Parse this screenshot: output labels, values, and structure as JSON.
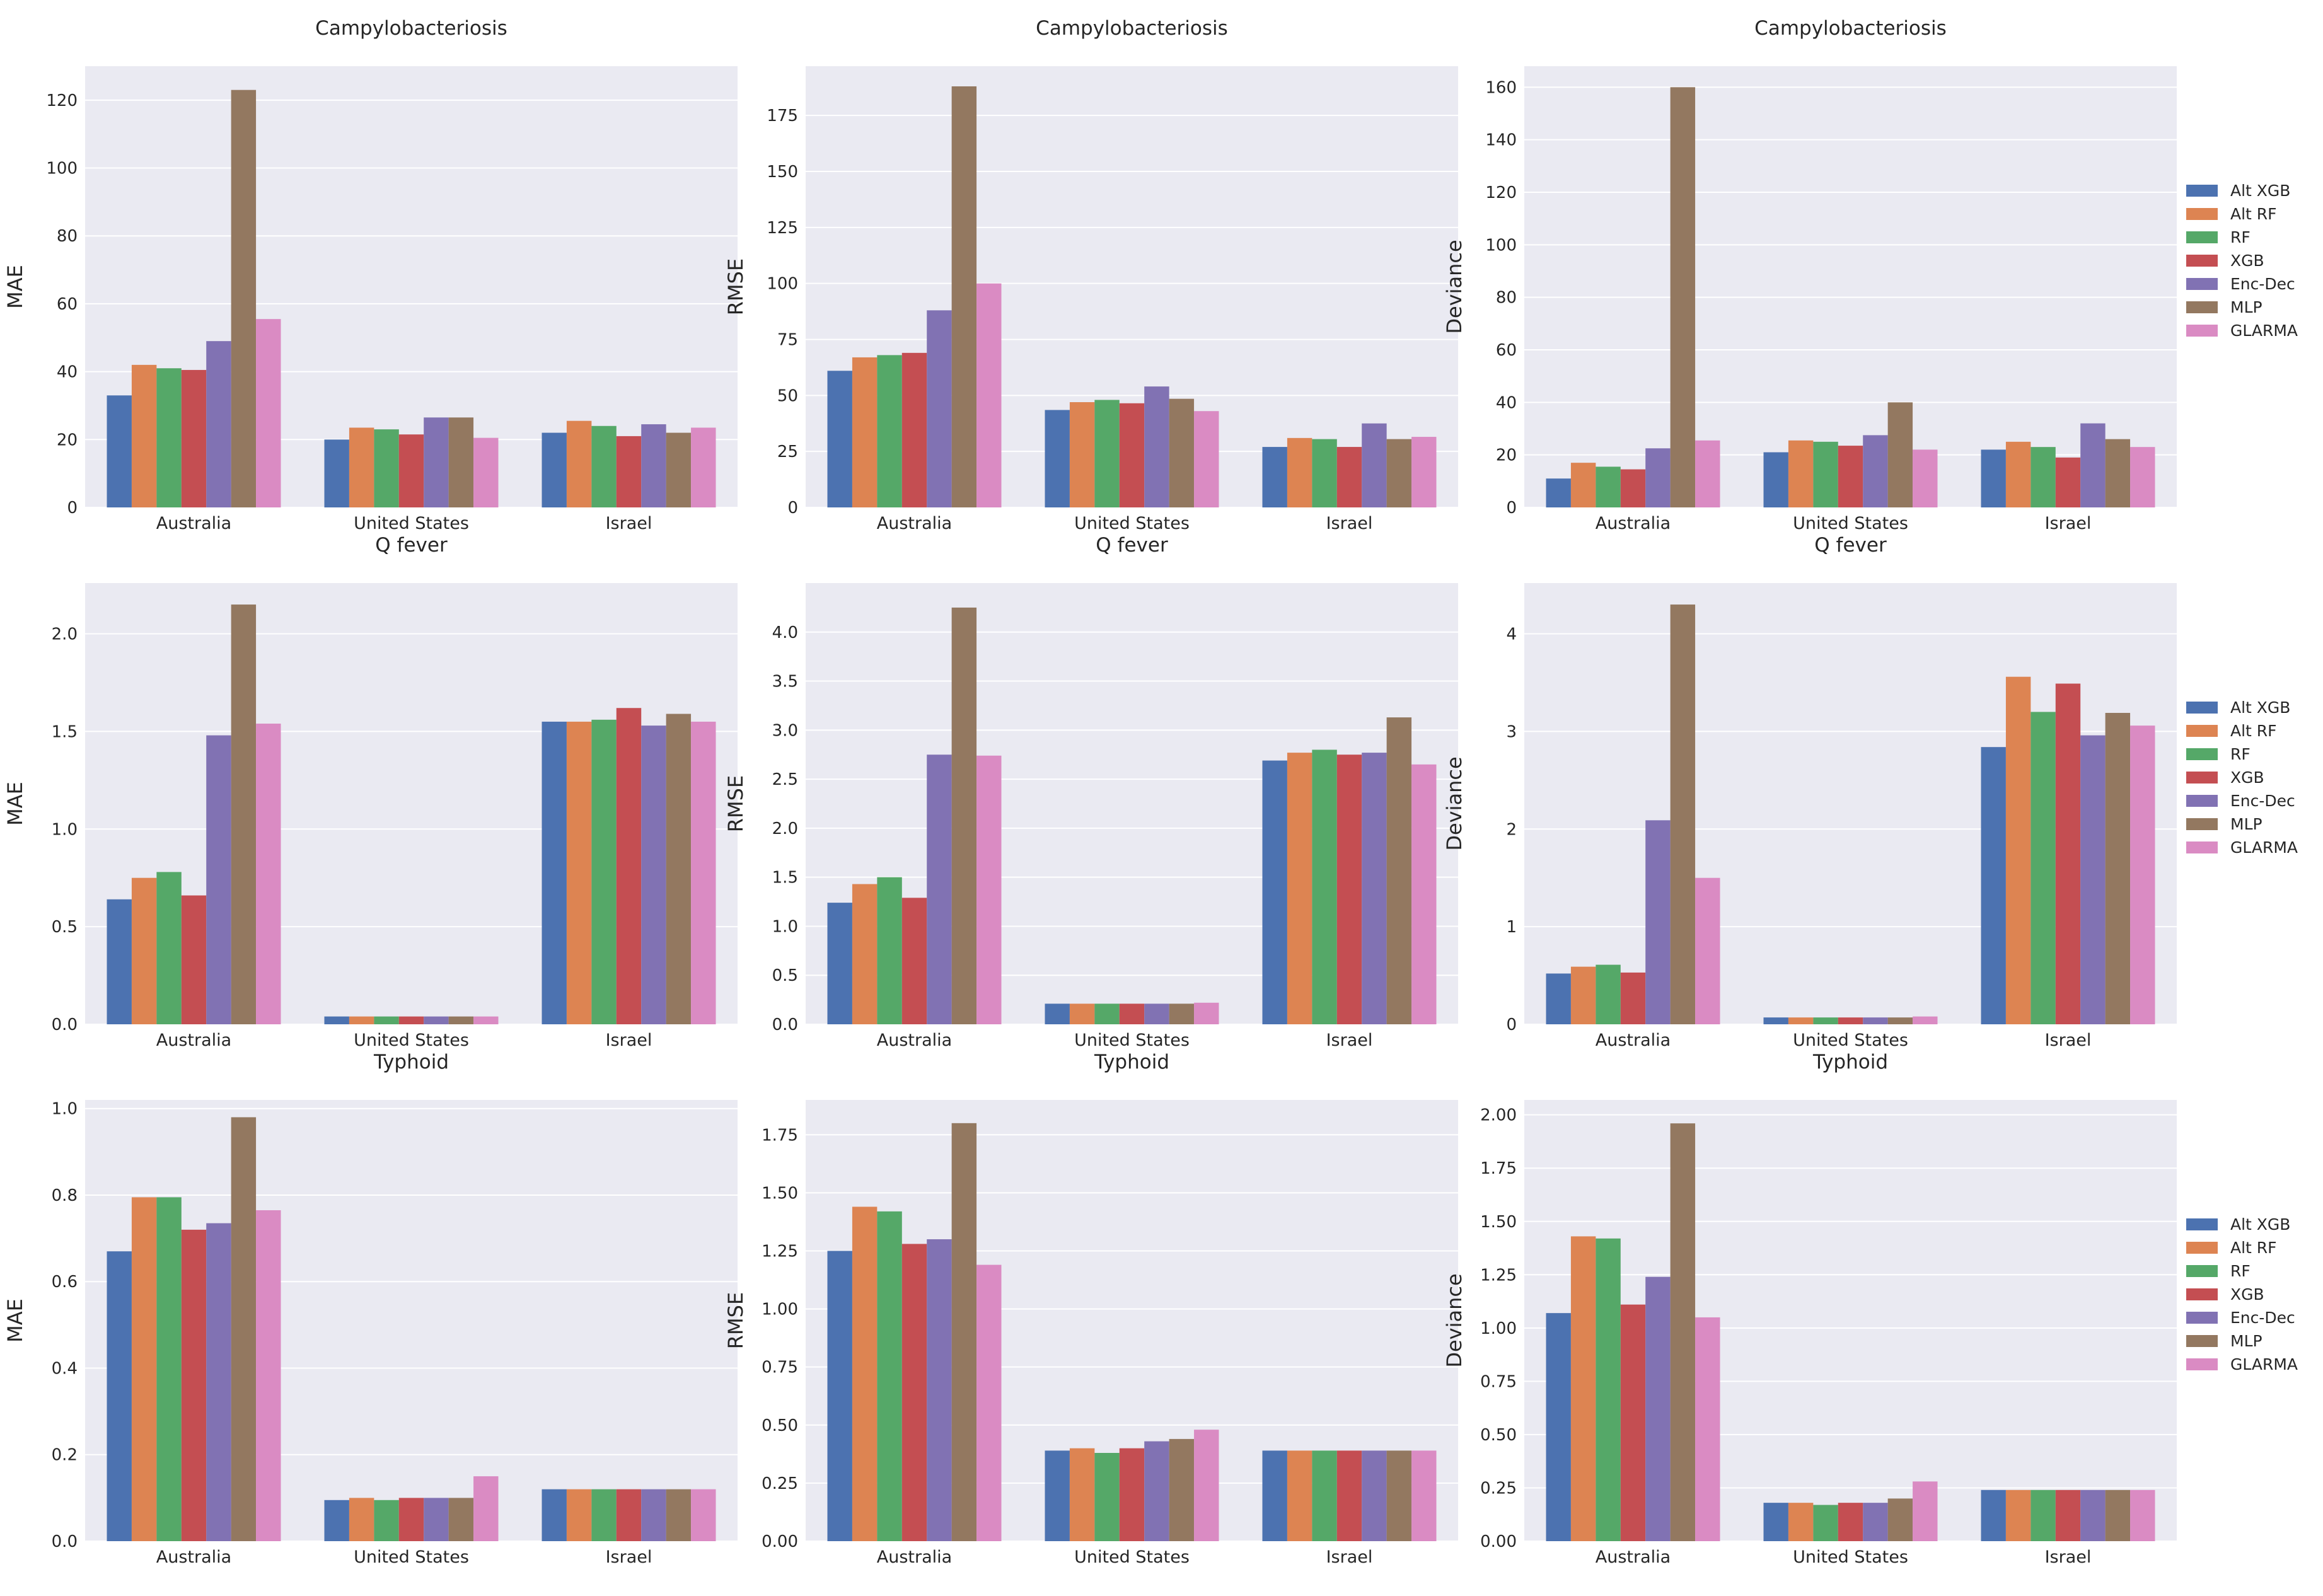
{
  "series_names": [
    "Alt XGB",
    "Alt RF",
    "RF",
    "XGB",
    "Enc-Dec",
    "MLP",
    "GLARMA"
  ],
  "series_colors": [
    "#4c72b0",
    "#dd8452",
    "#55a868",
    "#c44e52",
    "#8172b3",
    "#937860",
    "#da8bc3"
  ],
  "chart_data": [
    {
      "type": "bar",
      "title": "Campylobacteriosis",
      "xlabel": "",
      "ylabel": "MAE",
      "categories": [
        "Australia",
        "United States",
        "Israel"
      ],
      "ylim": [
        0,
        130
      ],
      "yticks": [
        0,
        20,
        40,
        60,
        80,
        100,
        120
      ],
      "yticklabels": [
        "0",
        "20",
        "40",
        "60",
        "80",
        "100",
        "120"
      ],
      "series": [
        {
          "name": "Alt XGB",
          "values": [
            33,
            20,
            22
          ]
        },
        {
          "name": "Alt RF",
          "values": [
            42,
            23.5,
            25.5
          ]
        },
        {
          "name": "RF",
          "values": [
            41,
            23,
            24
          ]
        },
        {
          "name": "XGB",
          "values": [
            40.5,
            21.5,
            21
          ]
        },
        {
          "name": "Enc-Dec",
          "values": [
            49,
            26.5,
            24.5
          ]
        },
        {
          "name": "MLP",
          "values": [
            123,
            26.5,
            22
          ]
        },
        {
          "name": "GLARMA",
          "values": [
            55.5,
            20.5,
            23.5
          ]
        }
      ]
    },
    {
      "type": "bar",
      "title": "Campylobacteriosis",
      "xlabel": "",
      "ylabel": "RMSE",
      "categories": [
        "Australia",
        "United States",
        "Israel"
      ],
      "ylim": [
        0,
        197
      ],
      "yticks": [
        0,
        25,
        50,
        75,
        100,
        125,
        150,
        175
      ],
      "yticklabels": [
        "0",
        "25",
        "50",
        "75",
        "100",
        "125",
        "150",
        "175"
      ],
      "series": [
        {
          "name": "Alt XGB",
          "values": [
            61,
            43.5,
            27
          ]
        },
        {
          "name": "Alt RF",
          "values": [
            67,
            47,
            31
          ]
        },
        {
          "name": "RF",
          "values": [
            68,
            48,
            30.5
          ]
        },
        {
          "name": "XGB",
          "values": [
            69,
            46.5,
            27
          ]
        },
        {
          "name": "Enc-Dec",
          "values": [
            88,
            54,
            37.5
          ]
        },
        {
          "name": "MLP",
          "values": [
            188,
            48.5,
            30.5
          ]
        },
        {
          "name": "GLARMA",
          "values": [
            100,
            43,
            31.5
          ]
        }
      ]
    },
    {
      "type": "bar",
      "title": "Campylobacteriosis",
      "xlabel": "",
      "ylabel": "Deviance",
      "categories": [
        "Australia",
        "United States",
        "Israel"
      ],
      "ylim": [
        0,
        168
      ],
      "yticks": [
        0,
        20,
        40,
        60,
        80,
        100,
        120,
        140,
        160
      ],
      "yticklabels": [
        "0",
        "20",
        "40",
        "60",
        "80",
        "100",
        "120",
        "140",
        "160"
      ],
      "series": [
        {
          "name": "Alt XGB",
          "values": [
            11,
            21,
            22
          ]
        },
        {
          "name": "Alt RF",
          "values": [
            17,
            25.5,
            25
          ]
        },
        {
          "name": "RF",
          "values": [
            15.5,
            25,
            23
          ]
        },
        {
          "name": "XGB",
          "values": [
            14.5,
            23.5,
            19
          ]
        },
        {
          "name": "Enc-Dec",
          "values": [
            22.5,
            27.5,
            32
          ]
        },
        {
          "name": "MLP",
          "values": [
            160,
            40,
            26
          ]
        },
        {
          "name": "GLARMA",
          "values": [
            25.5,
            22,
            23
          ]
        }
      ]
    },
    {
      "type": "bar",
      "title": "Q fever",
      "xlabel": "",
      "ylabel": "MAE",
      "categories": [
        "Australia",
        "United States",
        "Israel"
      ],
      "ylim": [
        0,
        2.26
      ],
      "yticks": [
        0,
        0.5,
        1.0,
        1.5,
        2.0
      ],
      "yticklabels": [
        "0.0",
        "0.5",
        "1.0",
        "1.5",
        "2.0"
      ],
      "series": [
        {
          "name": "Alt XGB",
          "values": [
            0.64,
            0.04,
            1.55
          ]
        },
        {
          "name": "Alt RF",
          "values": [
            0.75,
            0.04,
            1.55
          ]
        },
        {
          "name": "RF",
          "values": [
            0.78,
            0.04,
            1.56
          ]
        },
        {
          "name": "XGB",
          "values": [
            0.66,
            0.04,
            1.62
          ]
        },
        {
          "name": "Enc-Dec",
          "values": [
            1.48,
            0.04,
            1.53
          ]
        },
        {
          "name": "MLP",
          "values": [
            2.15,
            0.04,
            1.59
          ]
        },
        {
          "name": "GLARMA",
          "values": [
            1.54,
            0.04,
            1.55
          ]
        }
      ]
    },
    {
      "type": "bar",
      "title": "Q fever",
      "xlabel": "",
      "ylabel": "RMSE",
      "categories": [
        "Australia",
        "United States",
        "Israel"
      ],
      "ylim": [
        0,
        4.5
      ],
      "yticks": [
        0,
        0.5,
        1.0,
        1.5,
        2.0,
        2.5,
        3.0,
        3.5,
        4.0
      ],
      "yticklabels": [
        "0.0",
        "0.5",
        "1.0",
        "1.5",
        "2.0",
        "2.5",
        "3.0",
        "3.5",
        "4.0"
      ],
      "series": [
        {
          "name": "Alt XGB",
          "values": [
            1.24,
            0.21,
            2.69
          ]
        },
        {
          "name": "Alt RF",
          "values": [
            1.43,
            0.21,
            2.77
          ]
        },
        {
          "name": "RF",
          "values": [
            1.5,
            0.21,
            2.8
          ]
        },
        {
          "name": "XGB",
          "values": [
            1.29,
            0.21,
            2.75
          ]
        },
        {
          "name": "Enc-Dec",
          "values": [
            2.75,
            0.21,
            2.77
          ]
        },
        {
          "name": "MLP",
          "values": [
            4.25,
            0.21,
            3.13
          ]
        },
        {
          "name": "GLARMA",
          "values": [
            2.74,
            0.22,
            2.65
          ]
        }
      ]
    },
    {
      "type": "bar",
      "title": "Q fever",
      "xlabel": "",
      "ylabel": "Deviance",
      "categories": [
        "Australia",
        "United States",
        "Israel"
      ],
      "ylim": [
        0,
        4.52
      ],
      "yticks": [
        0,
        1,
        2,
        3,
        4
      ],
      "yticklabels": [
        "0",
        "1",
        "2",
        "3",
        "4"
      ],
      "series": [
        {
          "name": "Alt XGB",
          "values": [
            0.52,
            0.07,
            2.84
          ]
        },
        {
          "name": "Alt RF",
          "values": [
            0.59,
            0.07,
            3.56
          ]
        },
        {
          "name": "RF",
          "values": [
            0.61,
            0.07,
            3.2
          ]
        },
        {
          "name": "XGB",
          "values": [
            0.53,
            0.07,
            3.49
          ]
        },
        {
          "name": "Enc-Dec",
          "values": [
            2.09,
            0.07,
            2.96
          ]
        },
        {
          "name": "MLP",
          "values": [
            4.3,
            0.07,
            3.19
          ]
        },
        {
          "name": "GLARMA",
          "values": [
            1.5,
            0.08,
            3.06
          ]
        }
      ]
    },
    {
      "type": "bar",
      "title": "Typhoid",
      "xlabel": "",
      "ylabel": "MAE",
      "categories": [
        "Australia",
        "United States",
        "Israel"
      ],
      "ylim": [
        0,
        1.02
      ],
      "yticks": [
        0,
        0.2,
        0.4,
        0.6,
        0.8,
        1.0
      ],
      "yticklabels": [
        "0.0",
        "0.2",
        "0.4",
        "0.6",
        "0.8",
        "1.0"
      ],
      "series": [
        {
          "name": "Alt XGB",
          "values": [
            0.67,
            0.095,
            0.12
          ]
        },
        {
          "name": "Alt RF",
          "values": [
            0.795,
            0.1,
            0.12
          ]
        },
        {
          "name": "RF",
          "values": [
            0.795,
            0.095,
            0.12
          ]
        },
        {
          "name": "XGB",
          "values": [
            0.72,
            0.1,
            0.12
          ]
        },
        {
          "name": "Enc-Dec",
          "values": [
            0.735,
            0.1,
            0.12
          ]
        },
        {
          "name": "MLP",
          "values": [
            0.98,
            0.1,
            0.12
          ]
        },
        {
          "name": "GLARMA",
          "values": [
            0.765,
            0.15,
            0.12
          ]
        }
      ]
    },
    {
      "type": "bar",
      "title": "Typhoid",
      "xlabel": "",
      "ylabel": "RMSE",
      "categories": [
        "Australia",
        "United States",
        "Israel"
      ],
      "ylim": [
        0,
        1.9
      ],
      "yticks": [
        0,
        0.25,
        0.5,
        0.75,
        1.0,
        1.25,
        1.5,
        1.75
      ],
      "yticklabels": [
        "0.00",
        "0.25",
        "0.50",
        "0.75",
        "1.00",
        "1.25",
        "1.50",
        "1.75"
      ],
      "series": [
        {
          "name": "Alt XGB",
          "values": [
            1.25,
            0.39,
            0.39
          ]
        },
        {
          "name": "Alt RF",
          "values": [
            1.44,
            0.4,
            0.39
          ]
        },
        {
          "name": "RF",
          "values": [
            1.42,
            0.38,
            0.39
          ]
        },
        {
          "name": "XGB",
          "values": [
            1.28,
            0.4,
            0.39
          ]
        },
        {
          "name": "Enc-Dec",
          "values": [
            1.3,
            0.43,
            0.39
          ]
        },
        {
          "name": "MLP",
          "values": [
            1.8,
            0.44,
            0.39
          ]
        },
        {
          "name": "GLARMA",
          "values": [
            1.19,
            0.48,
            0.39
          ]
        }
      ]
    },
    {
      "type": "bar",
      "title": "Typhoid",
      "xlabel": "",
      "ylabel": "Deviance",
      "categories": [
        "Australia",
        "United States",
        "Israel"
      ],
      "ylim": [
        0,
        2.07
      ],
      "yticks": [
        0,
        0.25,
        0.5,
        0.75,
        1.0,
        1.25,
        1.5,
        1.75,
        2.0
      ],
      "yticklabels": [
        "0.00",
        "0.25",
        "0.50",
        "0.75",
        "1.00",
        "1.25",
        "1.50",
        "1.75",
        "2.00"
      ],
      "series": [
        {
          "name": "Alt XGB",
          "values": [
            1.07,
            0.18,
            0.24
          ]
        },
        {
          "name": "Alt RF",
          "values": [
            1.43,
            0.18,
            0.24
          ]
        },
        {
          "name": "RF",
          "values": [
            1.42,
            0.17,
            0.24
          ]
        },
        {
          "name": "XGB",
          "values": [
            1.11,
            0.18,
            0.24
          ]
        },
        {
          "name": "Enc-Dec",
          "values": [
            1.24,
            0.18,
            0.24
          ]
        },
        {
          "name": "MLP",
          "values": [
            1.96,
            0.2,
            0.24
          ]
        },
        {
          "name": "GLARMA",
          "values": [
            1.05,
            0.28,
            0.24
          ]
        }
      ]
    }
  ]
}
